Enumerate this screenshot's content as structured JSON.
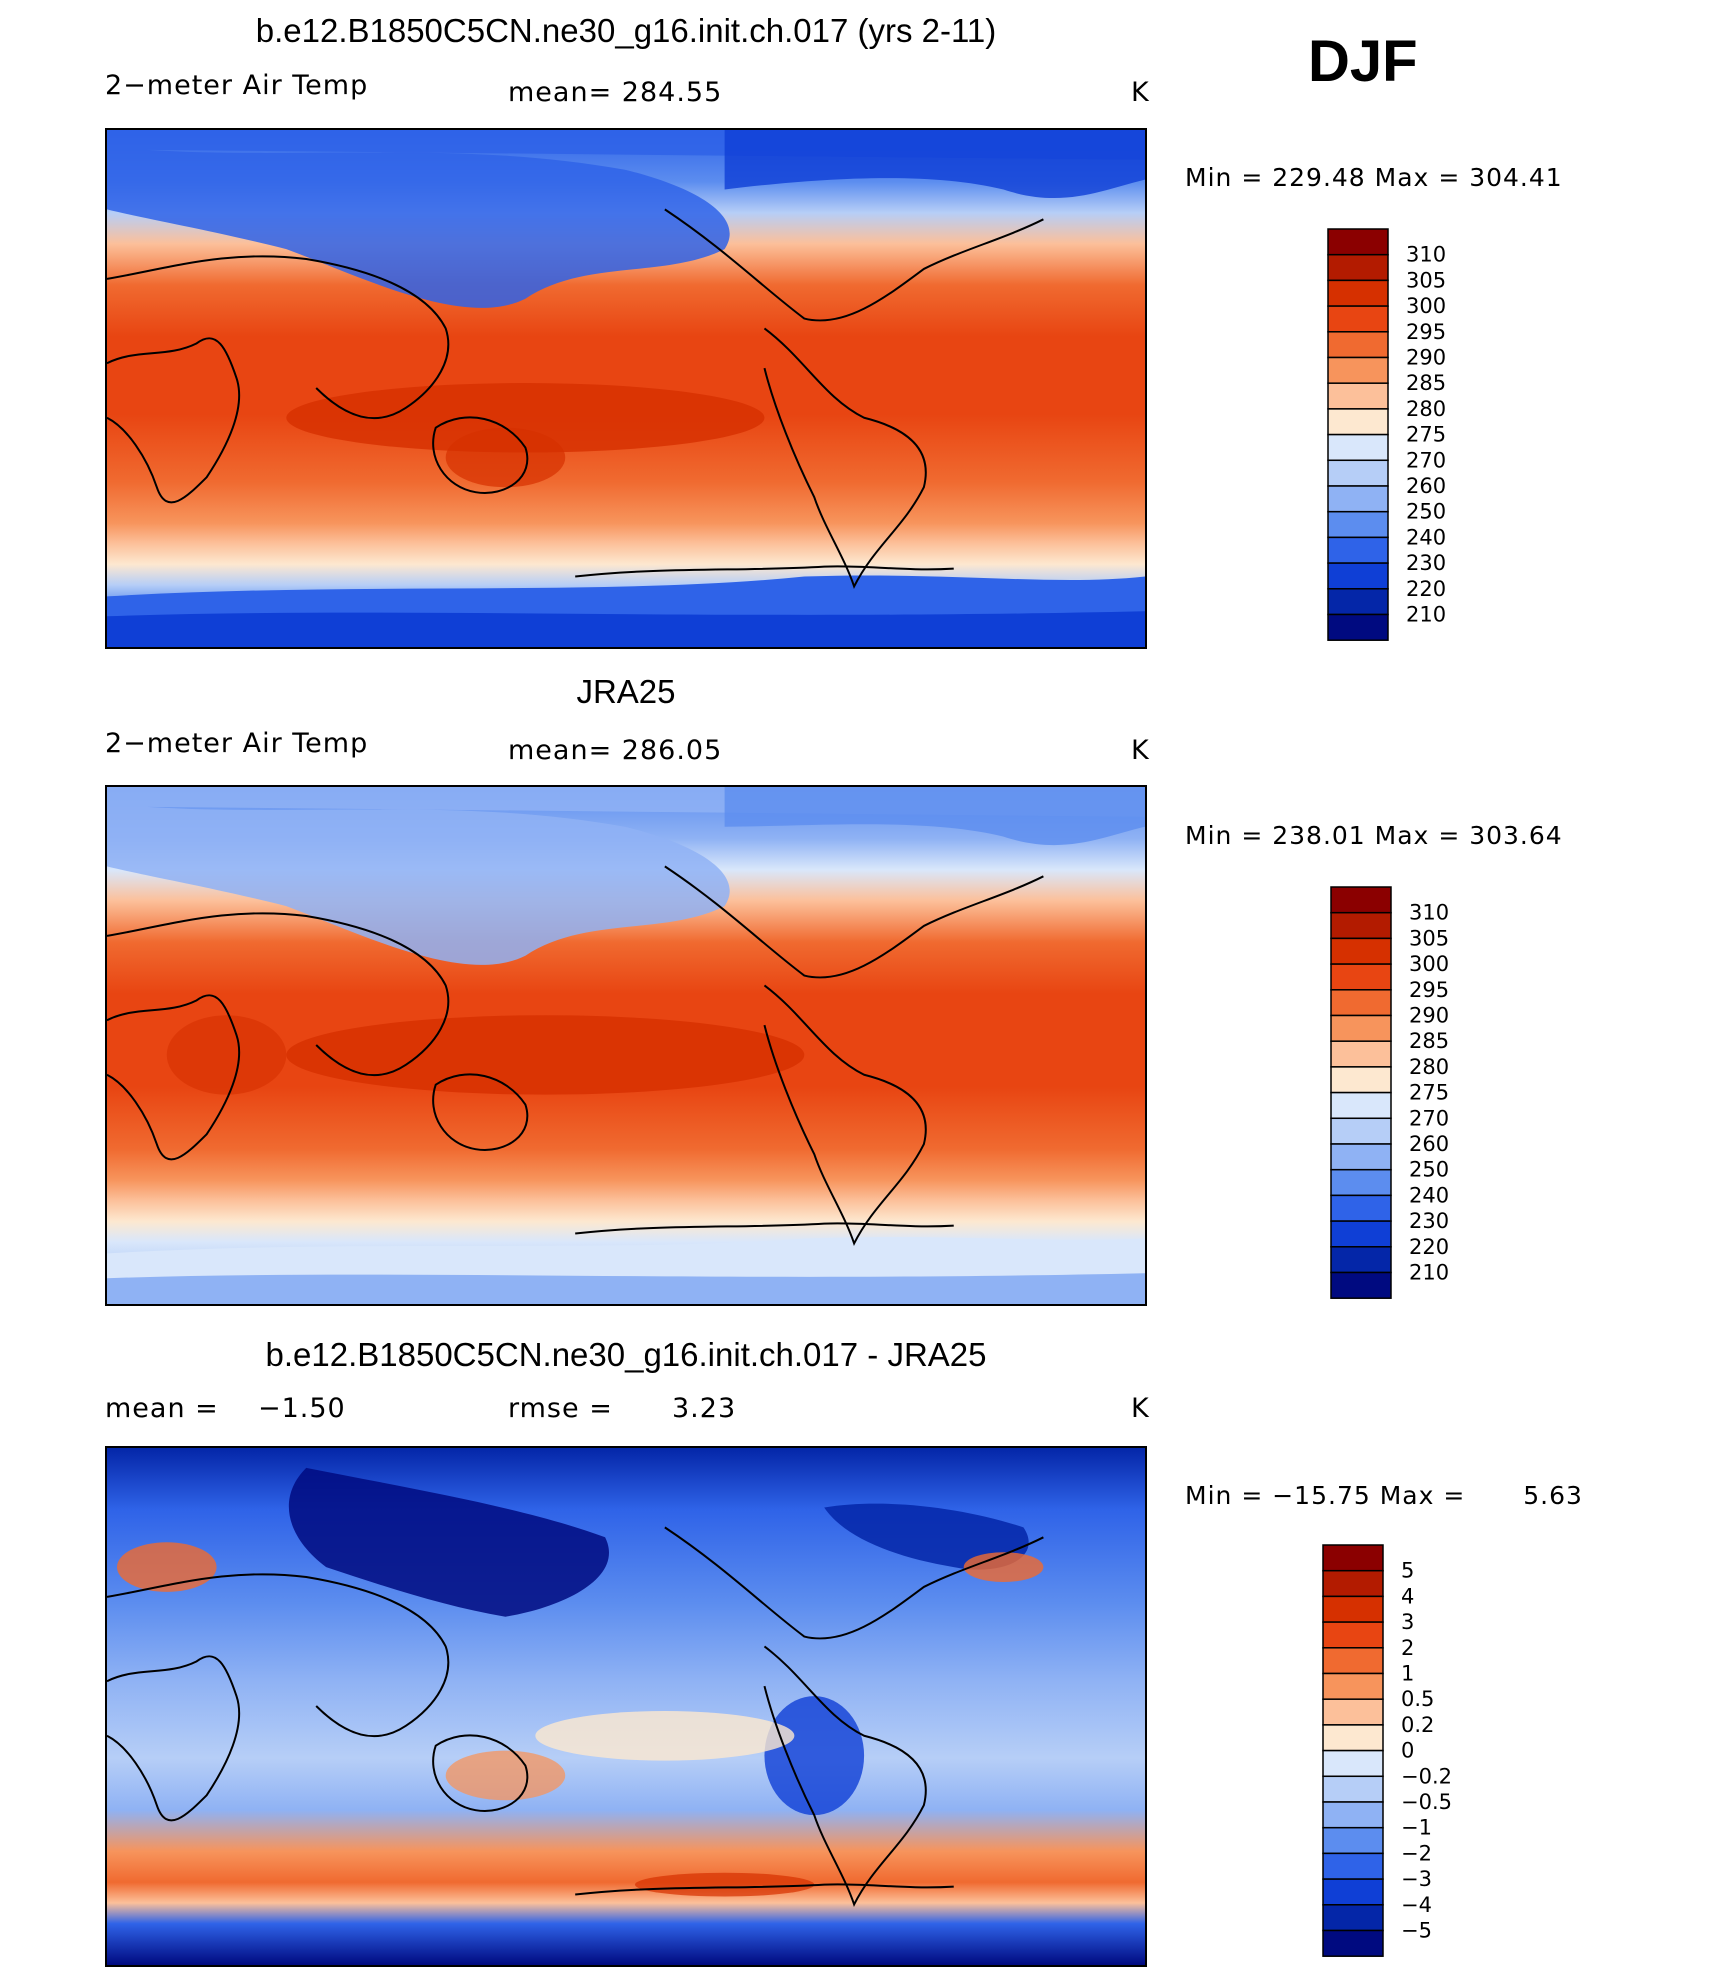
{
  "season_label": "DJF",
  "chart_data": [
    {
      "type": "heatmap",
      "title": "b.e12.B1850C5CN.ne30_g16.init.ch.017 (yrs 2-11)",
      "variable_label": "2−meter Air Temp",
      "mean_label": "mean=",
      "mean_value": "284.55",
      "units": "K",
      "min_label": "Min",
      "min_value": "229.48",
      "max_label": "Max",
      "max_value": "304.41",
      "eq": "=",
      "colorbar_levels": [
        "310",
        "305",
        "300",
        "295",
        "290",
        "285",
        "280",
        "275",
        "270",
        "260",
        "250",
        "240",
        "230",
        "220",
        "210"
      ],
      "colorbar_colors": [
        "#8b0000",
        "#b31b00",
        "#d63000",
        "#e84512",
        "#f06a30",
        "#f7945c",
        "#fcc09a",
        "#fde8d0",
        "#d9e7fb",
        "#b6cef7",
        "#8fb2f4",
        "#5c8def",
        "#2f63e8",
        "#0f3fd6",
        "#0426a8",
        "#000a80"
      ]
    },
    {
      "type": "heatmap",
      "title": "JRA25",
      "variable_label": "2−meter Air Temp",
      "mean_label": "mean=",
      "mean_value": "286.05",
      "units": "K",
      "min_label": "Min",
      "min_value": "238.01",
      "max_label": "Max",
      "max_value": "303.64",
      "eq": "=",
      "colorbar_levels": [
        "310",
        "305",
        "300",
        "295",
        "290",
        "285",
        "280",
        "275",
        "270",
        "260",
        "250",
        "240",
        "230",
        "220",
        "210"
      ],
      "colorbar_colors": [
        "#8b0000",
        "#b31b00",
        "#d63000",
        "#e84512",
        "#f06a30",
        "#f7945c",
        "#fcc09a",
        "#fde8d0",
        "#d9e7fb",
        "#b6cef7",
        "#8fb2f4",
        "#5c8def",
        "#2f63e8",
        "#0f3fd6",
        "#0426a8",
        "#000a80"
      ]
    },
    {
      "type": "heatmap",
      "title": "b.e12.B1850C5CN.ne30_g16.init.ch.017 - JRA25",
      "variable_label": "mean =",
      "mean_label": "rmse =",
      "diff_mean_value": "−1.50",
      "rmse_value": "3.23",
      "units": "K",
      "min_label": "Min",
      "min_value": "−15.75",
      "max_label": "Max",
      "max_value": "5.63",
      "eq": "=",
      "colorbar_levels": [
        "5",
        "4",
        "3",
        "2",
        "1",
        "0.5",
        "0.2",
        "0",
        "−0.2",
        "−0.5",
        "−1",
        "−2",
        "−3",
        "−4",
        "−5"
      ],
      "colorbar_colors": [
        "#8b0000",
        "#b31b00",
        "#d63000",
        "#e84512",
        "#f06a30",
        "#f7945c",
        "#fcc09a",
        "#fde8d0",
        "#d9e7fb",
        "#b6cef7",
        "#8fb2f4",
        "#5c8def",
        "#2f63e8",
        "#0f3fd6",
        "#0426a8",
        "#000a80"
      ]
    }
  ]
}
